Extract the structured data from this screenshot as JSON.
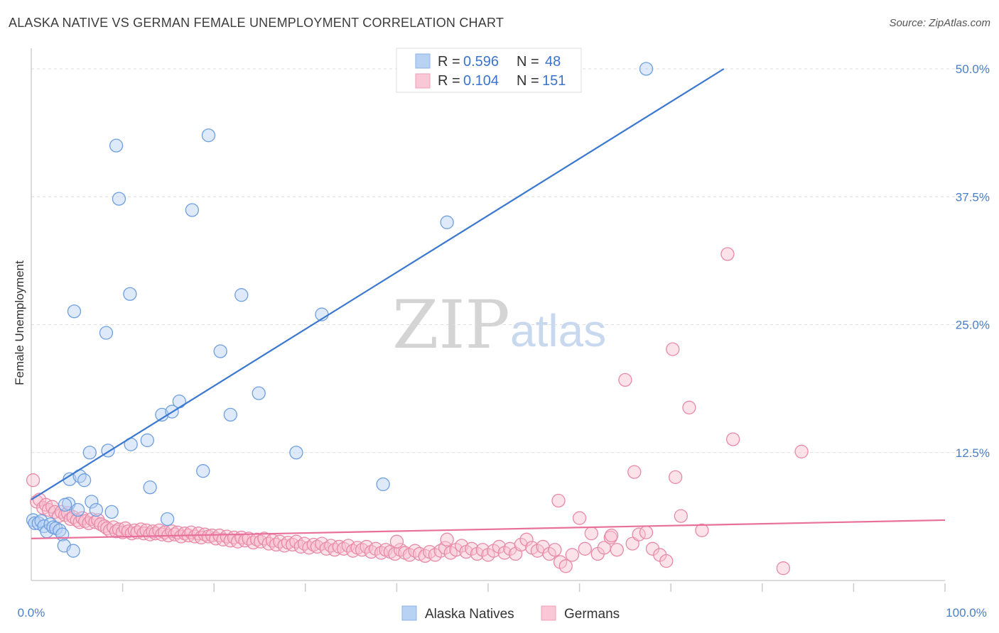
{
  "title": "ALASKA NATIVE VS GERMAN FEMALE UNEMPLOYMENT CORRELATION CHART",
  "source": "Source: ZipAtlas.com",
  "watermark": {
    "zip": "ZIP",
    "atlas": "atlas"
  },
  "legend_top": [
    {
      "r_label": "R = ",
      "r_value": "0.596",
      "n_label": "N = ",
      "n_value": "48",
      "color": "#a9c7f0"
    },
    {
      "r_label": "R = ",
      "r_value": "0.104",
      "n_label": "N = ",
      "n_value": "151",
      "color": "#f7b7c9"
    }
  ],
  "legend_bottom": [
    {
      "label": "Alaska Natives",
      "color": "#a9c7f0"
    },
    {
      "label": "Germans",
      "color": "#f7b7c9"
    }
  ],
  "chart_data": {
    "type": "scatter",
    "xlabel": "",
    "ylabel": "Female Unemployment",
    "xlim": [
      0,
      100
    ],
    "ylim": [
      0,
      52
    ],
    "x_tick_labels": [
      "0.0%",
      "100.0%"
    ],
    "y_ticks": [
      12.5,
      25.0,
      37.5,
      50.0
    ],
    "y_tick_labels": [
      "12.5%",
      "25.0%",
      "37.5%",
      "50.0%"
    ],
    "grid": true,
    "colors": {
      "alaska": "#3b78d0",
      "germans": "#e8709a"
    },
    "series": [
      {
        "name": "Alaska Natives",
        "color": "#3b78d0",
        "trend": {
          "x0": 0,
          "y0": 7.9,
          "x1": 75.8,
          "y1": 50.0
        },
        "points": [
          [
            0.2,
            5.9
          ],
          [
            0.4,
            5.6
          ],
          [
            0.8,
            5.6
          ],
          [
            1.1,
            5.8
          ],
          [
            1.4,
            5.3
          ],
          [
            1.7,
            4.8
          ],
          [
            2.1,
            5.5
          ],
          [
            2.4,
            5.2
          ],
          [
            2.7,
            5.1
          ],
          [
            3.1,
            4.9
          ],
          [
            3.4,
            4.5
          ],
          [
            3.6,
            3.4
          ],
          [
            4.6,
            2.9
          ],
          [
            4.1,
            7.5
          ],
          [
            3.7,
            7.4
          ],
          [
            5.1,
            6.9
          ],
          [
            4.2,
            9.9
          ],
          [
            5.3,
            10.2
          ],
          [
            5.8,
            9.8
          ],
          [
            6.4,
            12.5
          ],
          [
            6.6,
            7.7
          ],
          [
            7.1,
            6.9
          ],
          [
            8.8,
            6.7
          ],
          [
            8.4,
            12.7
          ],
          [
            10.9,
            13.3
          ],
          [
            12.7,
            13.7
          ],
          [
            13.0,
            9.1
          ],
          [
            14.3,
            16.2
          ],
          [
            14.9,
            6.0
          ],
          [
            15.4,
            16.5
          ],
          [
            16.2,
            17.5
          ],
          [
            18.8,
            10.7
          ],
          [
            20.7,
            22.4
          ],
          [
            21.8,
            16.2
          ],
          [
            23.0,
            27.9
          ],
          [
            24.9,
            18.3
          ],
          [
            29.0,
            12.5
          ],
          [
            31.8,
            26.0
          ],
          [
            38.5,
            9.4
          ],
          [
            4.7,
            26.3
          ],
          [
            8.2,
            24.2
          ],
          [
            10.8,
            28.0
          ],
          [
            9.3,
            42.5
          ],
          [
            9.6,
            37.3
          ],
          [
            17.6,
            36.2
          ],
          [
            19.4,
            43.5
          ],
          [
            45.5,
            35.0
          ],
          [
            67.3,
            50.0
          ]
        ]
      },
      {
        "name": "Germans",
        "color": "#e8709a",
        "trend": {
          "x0": 0,
          "y0": 4.1,
          "x1": 100,
          "y1": 5.9
        },
        "points": [
          [
            0.2,
            9.8
          ],
          [
            0.6,
            7.7
          ],
          [
            0.9,
            7.9
          ],
          [
            1.3,
            7.1
          ],
          [
            1.6,
            7.4
          ],
          [
            1.9,
            6.9
          ],
          [
            2.3,
            7.2
          ],
          [
            2.6,
            6.7
          ],
          [
            3.0,
            6.3
          ],
          [
            3.3,
            6.7
          ],
          [
            3.7,
            6.4
          ],
          [
            4.0,
            6.6
          ],
          [
            4.3,
            6.0
          ],
          [
            4.6,
            6.2
          ],
          [
            5.0,
            5.9
          ],
          [
            5.3,
            5.7
          ],
          [
            5.6,
            6.1
          ],
          [
            5.9,
            5.8
          ],
          [
            6.3,
            5.6
          ],
          [
            6.6,
            6.0
          ],
          [
            7.0,
            5.7
          ],
          [
            7.3,
            5.9
          ],
          [
            7.6,
            5.5
          ],
          [
            8.0,
            5.3
          ],
          [
            8.3,
            5.1
          ],
          [
            8.6,
            4.9
          ],
          [
            9.0,
            5.2
          ],
          [
            9.3,
            4.8
          ],
          [
            9.6,
            5.0
          ],
          [
            10.0,
            4.7
          ],
          [
            10.3,
            5.1
          ],
          [
            10.6,
            4.8
          ],
          [
            11.0,
            4.6
          ],
          [
            11.3,
            4.9
          ],
          [
            11.6,
            4.7
          ],
          [
            12.0,
            5.0
          ],
          [
            12.3,
            4.6
          ],
          [
            12.6,
            4.9
          ],
          [
            13.0,
            4.5
          ],
          [
            13.3,
            4.8
          ],
          [
            13.6,
            4.6
          ],
          [
            14.0,
            4.9
          ],
          [
            14.3,
            4.5
          ],
          [
            14.6,
            4.7
          ],
          [
            15.0,
            4.4
          ],
          [
            15.4,
            4.8
          ],
          [
            15.7,
            4.5
          ],
          [
            16.0,
            4.7
          ],
          [
            16.4,
            4.3
          ],
          [
            16.8,
            4.6
          ],
          [
            17.2,
            4.4
          ],
          [
            17.5,
            4.7
          ],
          [
            17.9,
            4.3
          ],
          [
            18.3,
            4.6
          ],
          [
            18.6,
            4.2
          ],
          [
            19.0,
            4.5
          ],
          [
            19.4,
            4.3
          ],
          [
            19.8,
            4.4
          ],
          [
            20.2,
            4.1
          ],
          [
            20.6,
            4.4
          ],
          [
            21.0,
            4.0
          ],
          [
            21.4,
            4.3
          ],
          [
            21.8,
            3.9
          ],
          [
            22.2,
            4.2
          ],
          [
            22.6,
            3.8
          ],
          [
            23.0,
            4.2
          ],
          [
            23.4,
            3.9
          ],
          [
            23.8,
            4.1
          ],
          [
            24.3,
            3.7
          ],
          [
            24.7,
            4.0
          ],
          [
            25.1,
            3.8
          ],
          [
            25.5,
            4.1
          ],
          [
            26.0,
            3.6
          ],
          [
            26.4,
            3.9
          ],
          [
            26.8,
            3.5
          ],
          [
            27.2,
            3.8
          ],
          [
            27.7,
            3.4
          ],
          [
            28.1,
            3.7
          ],
          [
            28.6,
            3.5
          ],
          [
            29.0,
            3.8
          ],
          [
            29.5,
            3.3
          ],
          [
            29.9,
            3.6
          ],
          [
            30.4,
            3.2
          ],
          [
            30.9,
            3.5
          ],
          [
            31.3,
            3.3
          ],
          [
            31.8,
            3.6
          ],
          [
            32.3,
            3.1
          ],
          [
            32.8,
            3.4
          ],
          [
            33.2,
            3.0
          ],
          [
            33.7,
            3.3
          ],
          [
            34.2,
            3.1
          ],
          [
            34.7,
            3.4
          ],
          [
            35.2,
            2.9
          ],
          [
            35.7,
            3.2
          ],
          [
            36.2,
            3.0
          ],
          [
            36.7,
            3.3
          ],
          [
            37.2,
            2.8
          ],
          [
            37.7,
            3.1
          ],
          [
            38.3,
            2.7
          ],
          [
            38.8,
            3.0
          ],
          [
            39.3,
            2.8
          ],
          [
            39.8,
            2.6
          ],
          [
            40.4,
            3.0
          ],
          [
            40.9,
            2.7
          ],
          [
            41.4,
            2.5
          ],
          [
            42.0,
            2.9
          ],
          [
            42.5,
            2.6
          ],
          [
            43.1,
            2.4
          ],
          [
            43.6,
            2.8
          ],
          [
            44.2,
            2.5
          ],
          [
            44.8,
            2.9
          ],
          [
            45.3,
            3.2
          ],
          [
            45.9,
            2.7
          ],
          [
            46.5,
            3.0
          ],
          [
            47.1,
            3.4
          ],
          [
            47.6,
            2.8
          ],
          [
            48.2,
            3.1
          ],
          [
            48.8,
            2.6
          ],
          [
            49.4,
            3.0
          ],
          [
            50.0,
            2.5
          ],
          [
            50.6,
            2.9
          ],
          [
            51.2,
            3.3
          ],
          [
            51.8,
            2.7
          ],
          [
            52.4,
            3.1
          ],
          [
            53.0,
            2.6
          ],
          [
            53.6,
            3.5
          ],
          [
            54.2,
            4.0
          ],
          [
            54.8,
            3.2
          ],
          [
            55.4,
            2.9
          ],
          [
            56.0,
            3.3
          ],
          [
            56.7,
            2.6
          ],
          [
            57.3,
            3.0
          ],
          [
            57.9,
            1.8
          ],
          [
            58.5,
            1.4
          ],
          [
            59.2,
            2.5
          ],
          [
            60.0,
            6.1
          ],
          [
            60.6,
            3.1
          ],
          [
            61.3,
            4.6
          ],
          [
            62.0,
            2.6
          ],
          [
            62.7,
            3.2
          ],
          [
            63.4,
            4.2
          ],
          [
            64.1,
            3.0
          ],
          [
            65.0,
            19.6
          ],
          [
            65.8,
            3.6
          ],
          [
            66.5,
            4.5
          ],
          [
            67.3,
            4.7
          ],
          [
            68.0,
            3.1
          ],
          [
            68.8,
            2.5
          ],
          [
            69.5,
            1.9
          ],
          [
            70.2,
            22.6
          ],
          [
            71.1,
            6.3
          ],
          [
            72.0,
            16.9
          ],
          [
            73.4,
            4.9
          ],
          [
            76.8,
            13.8
          ],
          [
            82.3,
            1.2
          ],
          [
            84.3,
            12.6
          ],
          [
            76.2,
            31.9
          ],
          [
            66.0,
            10.6
          ],
          [
            63.5,
            4.4
          ],
          [
            57.7,
            7.8
          ],
          [
            40.0,
            3.8
          ],
          [
            45.5,
            4.0
          ],
          [
            70.5,
            10.1
          ]
        ]
      }
    ]
  }
}
